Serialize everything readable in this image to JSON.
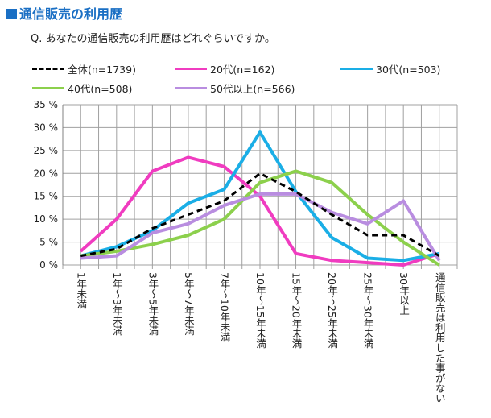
{
  "title": "通信販売の利用歴",
  "chart_data": {
    "type": "line",
    "title": "通信販売の利用歴",
    "subtitle": "Q. あなたの通信販売の利用歴はどれぐらいですか。",
    "categories": [
      "1年未満",
      "1年～3年未満",
      "3年～5年未満",
      "5年～7年未満",
      "7年～10年未満",
      "10年～15年未満",
      "15年～20年未満",
      "20年～25年未満",
      "25年～30年未満",
      "30年以上",
      "通信販売は利用した事がない"
    ],
    "ylim": [
      0,
      35
    ],
    "yticks": [
      "0 %",
      "5 %",
      "10 %",
      "15 %",
      "20 %",
      "25 %",
      "30 %",
      "35 %"
    ],
    "grid": true,
    "legend": "top",
    "series": [
      {
        "name": "全体(n=1739)",
        "color": "#000000",
        "dashed": true,
        "values": [
          2,
          3.5,
          8,
          11,
          14,
          20,
          16,
          11,
          6.5,
          6.5,
          2
        ]
      },
      {
        "name": "20代(n=162)",
        "color": "#f03cc0",
        "values": [
          3,
          10,
          20.5,
          23.5,
          21.5,
          15,
          2.5,
          1,
          0.5,
          0,
          2.5
        ]
      },
      {
        "name": "30代(n=503)",
        "color": "#1aaee6",
        "values": [
          2,
          4,
          7.5,
          13.5,
          16.5,
          29,
          16,
          6,
          1.5,
          1,
          2.5
        ]
      },
      {
        "name": "40代(n=508)",
        "color": "#8cd04c",
        "values": [
          2,
          3,
          4.5,
          6.5,
          10,
          18,
          20.5,
          18,
          11,
          5,
          0
        ]
      },
      {
        "name": "50代以上(n=566)",
        "color": "#b98de0",
        "values": [
          1.5,
          2,
          7,
          9,
          13,
          15.5,
          15.5,
          11.5,
          9,
          14,
          1
        ]
      }
    ]
  }
}
